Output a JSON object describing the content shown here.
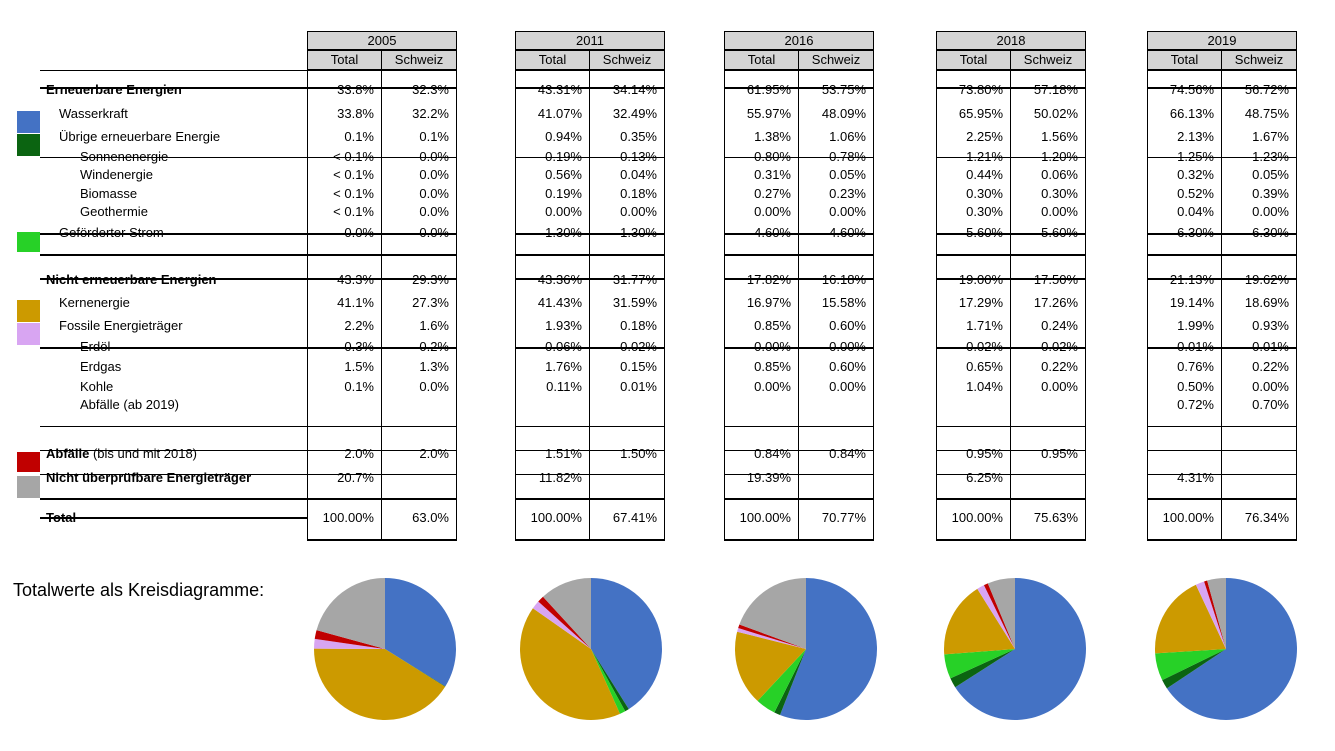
{
  "colors": {
    "wasserkraft": "#4472c4",
    "uebrige": "#0b6411",
    "gefoerdert": "#27d127",
    "kernenergie": "#cc9a00",
    "fossil": "#d8a5f2",
    "abfaelle": "#c00000",
    "nicht_pruefbar": "#a6a6a6"
  },
  "table": {
    "sub_total": "Total",
    "sub_schweiz": "Schweiz",
    "rows": [
      {
        "key": "erneuerbar",
        "label": "Erneuerbare Energien",
        "bold": true,
        "indent": 0
      },
      {
        "key": "wasserkraft",
        "label": "Wasserkraft",
        "bold": false,
        "indent": 1,
        "swatch": "wasserkraft"
      },
      {
        "key": "uebrige",
        "label": "Übrige erneuerbare Energie",
        "bold": false,
        "indent": 1,
        "swatch": "uebrige"
      },
      {
        "key": "sonne",
        "label": "Sonnenenergie",
        "bold": false,
        "indent": 2
      },
      {
        "key": "wind",
        "label": "Windenergie",
        "bold": false,
        "indent": 2
      },
      {
        "key": "bio",
        "label": "Biomasse",
        "bold": false,
        "indent": 2
      },
      {
        "key": "geo",
        "label": "Geothermie",
        "bold": false,
        "indent": 2
      },
      {
        "key": "gefoerdert",
        "label": "Geförderter Strom",
        "bold": false,
        "indent": 1,
        "swatch": "gefoerdert"
      },
      {
        "key": "nicht_ern",
        "label": "Nicht erneuerbare Energien",
        "bold": true,
        "indent": 0
      },
      {
        "key": "kern",
        "label": "Kernenergie",
        "bold": false,
        "indent": 1,
        "swatch": "kernenergie"
      },
      {
        "key": "fossil",
        "label": "Fossile Energieträger",
        "bold": false,
        "indent": 1,
        "swatch": "fossil"
      },
      {
        "key": "erdoel",
        "label": "Erdöl",
        "bold": false,
        "indent": 2
      },
      {
        "key": "erdgas",
        "label": "Erdgas",
        "bold": false,
        "indent": 2
      },
      {
        "key": "kohle",
        "label": "Kohle",
        "bold": false,
        "indent": 2
      },
      {
        "key": "abf2019",
        "label": "Abfälle (ab 2019)",
        "bold": false,
        "indent": 2
      },
      {
        "key": "abfaelle",
        "label": "Abfälle",
        "label_suffix": " (bis und mit 2018)",
        "bold": true,
        "indent": 0,
        "swatch": "abfaelle"
      },
      {
        "key": "npruef",
        "label": "Nicht überprüfbare Energieträger",
        "bold": true,
        "indent": 0,
        "swatch": "nicht_pruefbar"
      },
      {
        "key": "total",
        "label": "Total",
        "bold": true,
        "indent": 0
      }
    ],
    "years": [
      {
        "year": "2005",
        "values": {
          "erneuerbar": [
            "33.8%",
            "32.3%"
          ],
          "wasserkraft": [
            "33.8%",
            "32.2%"
          ],
          "uebrige": [
            "0.1%",
            "0.1%"
          ],
          "sonne": [
            "< 0.1%",
            "0.0%"
          ],
          "wind": [
            "< 0.1%",
            "0.0%"
          ],
          "bio": [
            "< 0.1%",
            "0.0%"
          ],
          "geo": [
            "< 0.1%",
            "0.0%"
          ],
          "gefoerdert": [
            "0.0%",
            "0.0%"
          ],
          "nicht_ern": [
            "43.3%",
            "29.3%"
          ],
          "kern": [
            "41.1%",
            "27.3%"
          ],
          "fossil": [
            "2.2%",
            "1.6%"
          ],
          "erdoel": [
            "0.3%",
            "0.2%"
          ],
          "erdgas": [
            "1.5%",
            "1.3%"
          ],
          "kohle": [
            "0.1%",
            "0.0%"
          ],
          "abf2019": [
            "",
            ""
          ],
          "abfaelle": [
            "2.0%",
            "2.0%"
          ],
          "npruef": [
            "20.7%",
            ""
          ],
          "total": [
            "100.00%",
            "63.0%"
          ]
        }
      },
      {
        "year": "2011",
        "values": {
          "erneuerbar": [
            "43.31%",
            "34.14%"
          ],
          "wasserkraft": [
            "41.07%",
            "32.49%"
          ],
          "uebrige": [
            "0.94%",
            "0.35%"
          ],
          "sonne": [
            "0.19%",
            "0.13%"
          ],
          "wind": [
            "0.56%",
            "0.04%"
          ],
          "bio": [
            "0.19%",
            "0.18%"
          ],
          "geo": [
            "0.00%",
            "0.00%"
          ],
          "gefoerdert": [
            "1.30%",
            "1.30%"
          ],
          "nicht_ern": [
            "43.36%",
            "31.77%"
          ],
          "kern": [
            "41.43%",
            "31.59%"
          ],
          "fossil": [
            "1.93%",
            "0.18%"
          ],
          "erdoel": [
            "0.06%",
            "0.02%"
          ],
          "erdgas": [
            "1.76%",
            "0.15%"
          ],
          "kohle": [
            "0.11%",
            "0.01%"
          ],
          "abf2019": [
            "",
            ""
          ],
          "abfaelle": [
            "1.51%",
            "1.50%"
          ],
          "npruef": [
            "11.82%",
            ""
          ],
          "total": [
            "100.00%",
            "67.41%"
          ]
        }
      },
      {
        "year": "2016",
        "values": {
          "erneuerbar": [
            "61.95%",
            "53.75%"
          ],
          "wasserkraft": [
            "55.97%",
            "48.09%"
          ],
          "uebrige": [
            "1.38%",
            "1.06%"
          ],
          "sonne": [
            "0.80%",
            "0.78%"
          ],
          "wind": [
            "0.31%",
            "0.05%"
          ],
          "bio": [
            "0.27%",
            "0.23%"
          ],
          "geo": [
            "0.00%",
            "0.00%"
          ],
          "gefoerdert": [
            "4.60%",
            "4.60%"
          ],
          "nicht_ern": [
            "17.82%",
            "16.18%"
          ],
          "kern": [
            "16.97%",
            "15.58%"
          ],
          "fossil": [
            "0.85%",
            "0.60%"
          ],
          "erdoel": [
            "0.00%",
            "0.00%"
          ],
          "erdgas": [
            "0.85%",
            "0.60%"
          ],
          "kohle": [
            "0.00%",
            "0.00%"
          ],
          "abf2019": [
            "",
            ""
          ],
          "abfaelle": [
            "0.84%",
            "0.84%"
          ],
          "npruef": [
            "19.39%",
            ""
          ],
          "total": [
            "100.00%",
            "70.77%"
          ]
        }
      },
      {
        "year": "2018",
        "values": {
          "erneuerbar": [
            "73.80%",
            "57.18%"
          ],
          "wasserkraft": [
            "65.95%",
            "50.02%"
          ],
          "uebrige": [
            "2.25%",
            "1.56%"
          ],
          "sonne": [
            "1.21%",
            "1.20%"
          ],
          "wind": [
            "0.44%",
            "0.06%"
          ],
          "bio": [
            "0.30%",
            "0.30%"
          ],
          "geo": [
            "0.30%",
            "0.00%"
          ],
          "gefoerdert": [
            "5.60%",
            "5.60%"
          ],
          "nicht_ern": [
            "19.00%",
            "17.50%"
          ],
          "kern": [
            "17.29%",
            "17.26%"
          ],
          "fossil": [
            "1.71%",
            "0.24%"
          ],
          "erdoel": [
            "0.02%",
            "0.02%"
          ],
          "erdgas": [
            "0.65%",
            "0.22%"
          ],
          "kohle": [
            "1.04%",
            "0.00%"
          ],
          "abf2019": [
            "",
            ""
          ],
          "abfaelle": [
            "0.95%",
            "0.95%"
          ],
          "npruef": [
            "6.25%",
            ""
          ],
          "total": [
            "100.00%",
            "75.63%"
          ]
        }
      },
      {
        "year": "2019",
        "values": {
          "erneuerbar": [
            "74.56%",
            "56.72%"
          ],
          "wasserkraft": [
            "66.13%",
            "48.75%"
          ],
          "uebrige": [
            "2.13%",
            "1.67%"
          ],
          "sonne": [
            "1.25%",
            "1.23%"
          ],
          "wind": [
            "0.32%",
            "0.05%"
          ],
          "bio": [
            "0.52%",
            "0.39%"
          ],
          "geo": [
            "0.04%",
            "0.00%"
          ],
          "gefoerdert": [
            "6.30%",
            "6.30%"
          ],
          "nicht_ern": [
            "21.13%",
            "19.62%"
          ],
          "kern": [
            "19.14%",
            "18.69%"
          ],
          "fossil": [
            "1.99%",
            "0.93%"
          ],
          "erdoel": [
            "0.01%",
            "0.01%"
          ],
          "erdgas": [
            "0.76%",
            "0.22%"
          ],
          "kohle": [
            "0.50%",
            "0.00%"
          ],
          "abf2019": [
            "0.72%",
            "0.70%"
          ],
          "abfaelle": [
            "",
            ""
          ],
          "npruef": [
            "4.31%",
            ""
          ],
          "total": [
            "100.00%",
            "76.34%"
          ]
        }
      }
    ]
  },
  "pie_caption": "Totalwerte als Kreisdiagramme:",
  "chart_data": [
    {
      "type": "pie",
      "categories": [
        "Wasserkraft",
        "Übrige erneuerbare Energie",
        "Geförderter Strom",
        "Kernenergie",
        "Fossile Energieträger",
        "Abfälle",
        "Nicht überprüfbare Energieträger"
      ],
      "values": [
        33.8,
        0.1,
        0.0,
        41.1,
        2.2,
        2.0,
        20.7
      ]
    },
    {
      "type": "pie",
      "categories": [
        "Wasserkraft",
        "Übrige erneuerbare Energie",
        "Geförderter Strom",
        "Kernenergie",
        "Fossile Energieträger",
        "Abfälle",
        "Nicht überprüfbare Energieträger"
      ],
      "values": [
        41.07,
        0.94,
        1.3,
        41.43,
        1.93,
        1.51,
        11.82
      ]
    },
    {
      "type": "pie",
      "categories": [
        "Wasserkraft",
        "Übrige erneuerbare Energie",
        "Geförderter Strom",
        "Kernenergie",
        "Fossile Energieträger",
        "Abfälle",
        "Nicht überprüfbare Energieträger"
      ],
      "values": [
        55.97,
        1.38,
        4.6,
        16.97,
        0.85,
        0.84,
        19.39
      ]
    },
    {
      "type": "pie",
      "categories": [
        "Wasserkraft",
        "Übrige erneuerbare Energie",
        "Geförderter Strom",
        "Kernenergie",
        "Fossile Energieträger",
        "Abfälle",
        "Nicht überprüfbare Energieträger"
      ],
      "values": [
        65.95,
        2.25,
        5.6,
        17.29,
        1.71,
        0.95,
        6.25
      ]
    },
    {
      "type": "pie",
      "categories": [
        "Wasserkraft",
        "Übrige erneuerbare Energie",
        "Geförderter Strom",
        "Kernenergie",
        "Fossile Energieträger",
        "Abfälle",
        "Nicht überprüfbare Energieträger"
      ],
      "values": [
        66.13,
        2.13,
        6.3,
        19.14,
        1.99,
        0.72,
        4.31
      ]
    }
  ]
}
